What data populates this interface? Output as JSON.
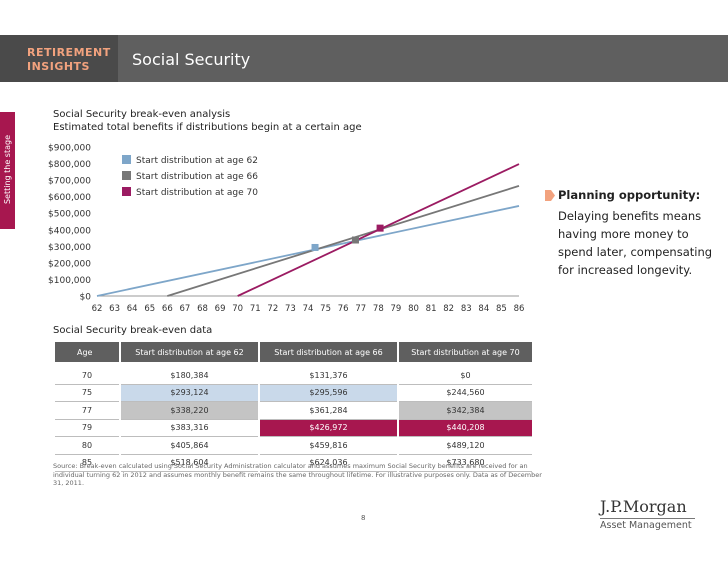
{
  "header": {
    "brand_line1": "RETIREMENT",
    "brand_line2": "INSIGHTS",
    "title": "Social Security"
  },
  "side_tab": "Setting the stage",
  "chart": {
    "title": "Social Security break-even analysis",
    "subtitle": "Estimated total benefits if distributions begin at a certain age"
  },
  "chart_data": {
    "type": "line",
    "title": "Social Security break-even analysis",
    "subtitle": "Estimated total benefits if distributions begin at a certain age",
    "xlabel": "",
    "ylabel": "",
    "x": [
      62,
      63,
      64,
      65,
      66,
      67,
      68,
      69,
      70,
      71,
      72,
      73,
      74,
      75,
      76,
      77,
      78,
      79,
      80,
      81,
      82,
      83,
      84,
      85,
      86
    ],
    "xlim": [
      62,
      86
    ],
    "ylim": [
      0,
      900000
    ],
    "yticks": [
      0,
      100000,
      200000,
      300000,
      400000,
      500000,
      600000,
      700000,
      800000,
      900000
    ],
    "ytick_labels": [
      "$0",
      "$100,000",
      "$200,000",
      "$300,000",
      "$400,000",
      "$500,000",
      "$600,000",
      "$700,000",
      "$800,000",
      "$900,000"
    ],
    "legend": "top-left",
    "series": [
      {
        "name": "Start distribution at age 62",
        "color": "#7ea6c9",
        "start_age": 62,
        "end_age": 86,
        "start_value": 0,
        "end_value": 544000
      },
      {
        "name": "Start distribution at age 66",
        "color": "#777777",
        "start_age": 66,
        "end_age": 86,
        "start_value": 0,
        "end_value": 665000
      },
      {
        "name": "Start distribution at age 70",
        "color": "#9b1b62",
        "start_age": 70,
        "end_age": 86,
        "start_value": 0,
        "end_value": 797000
      }
    ],
    "markers": [
      {
        "age": 74.4,
        "value": 293124,
        "color": "#7ea6c9"
      },
      {
        "age": 76.7,
        "value": 338220,
        "color": "#777777"
      },
      {
        "age": 78.1,
        "value": 410000,
        "color": "#9b1b62"
      }
    ]
  },
  "callout": {
    "title": "Planning opportunity:",
    "lines": [
      "Delaying benefits means",
      "having more money to",
      "spend later, compensating",
      "for increased longevity."
    ]
  },
  "table": {
    "title": "Social Security break-even data",
    "headers": [
      "Age",
      "Start distribution at age 62",
      "Start distribution at age 66",
      "Start distribution at age 70"
    ],
    "rows": [
      [
        "70",
        "$180,384",
        "$131,376",
        "$0"
      ],
      [
        "75",
        "$293,124",
        "$295,596",
        "$244,560"
      ],
      [
        "77",
        "$338,220",
        "$361,284",
        "$342,384"
      ],
      [
        "79",
        "$383,316",
        "$426,972",
        "$440,208"
      ],
      [
        "80",
        "$405,864",
        "$459,816",
        "$489,120"
      ],
      [
        "85",
        "$518,604",
        "$624,036",
        "$733,680"
      ]
    ]
  },
  "source": "Source: Break-even calculated using Social Security Administration calculator and assumes maximum Social Security benefits are received for an individual turning 62 in 2012 and assumes monthly benefit remains the same throughout lifetime. For illustrative purposes only. Data as of December 31, 2011.",
  "page_number": "8",
  "logo": {
    "line1": "J.P.Morgan",
    "line2": "Asset Management"
  },
  "colors": {
    "accent": "#a7174f",
    "header_gray": "#5f5f5f",
    "brand_orange": "#f2a27e"
  }
}
